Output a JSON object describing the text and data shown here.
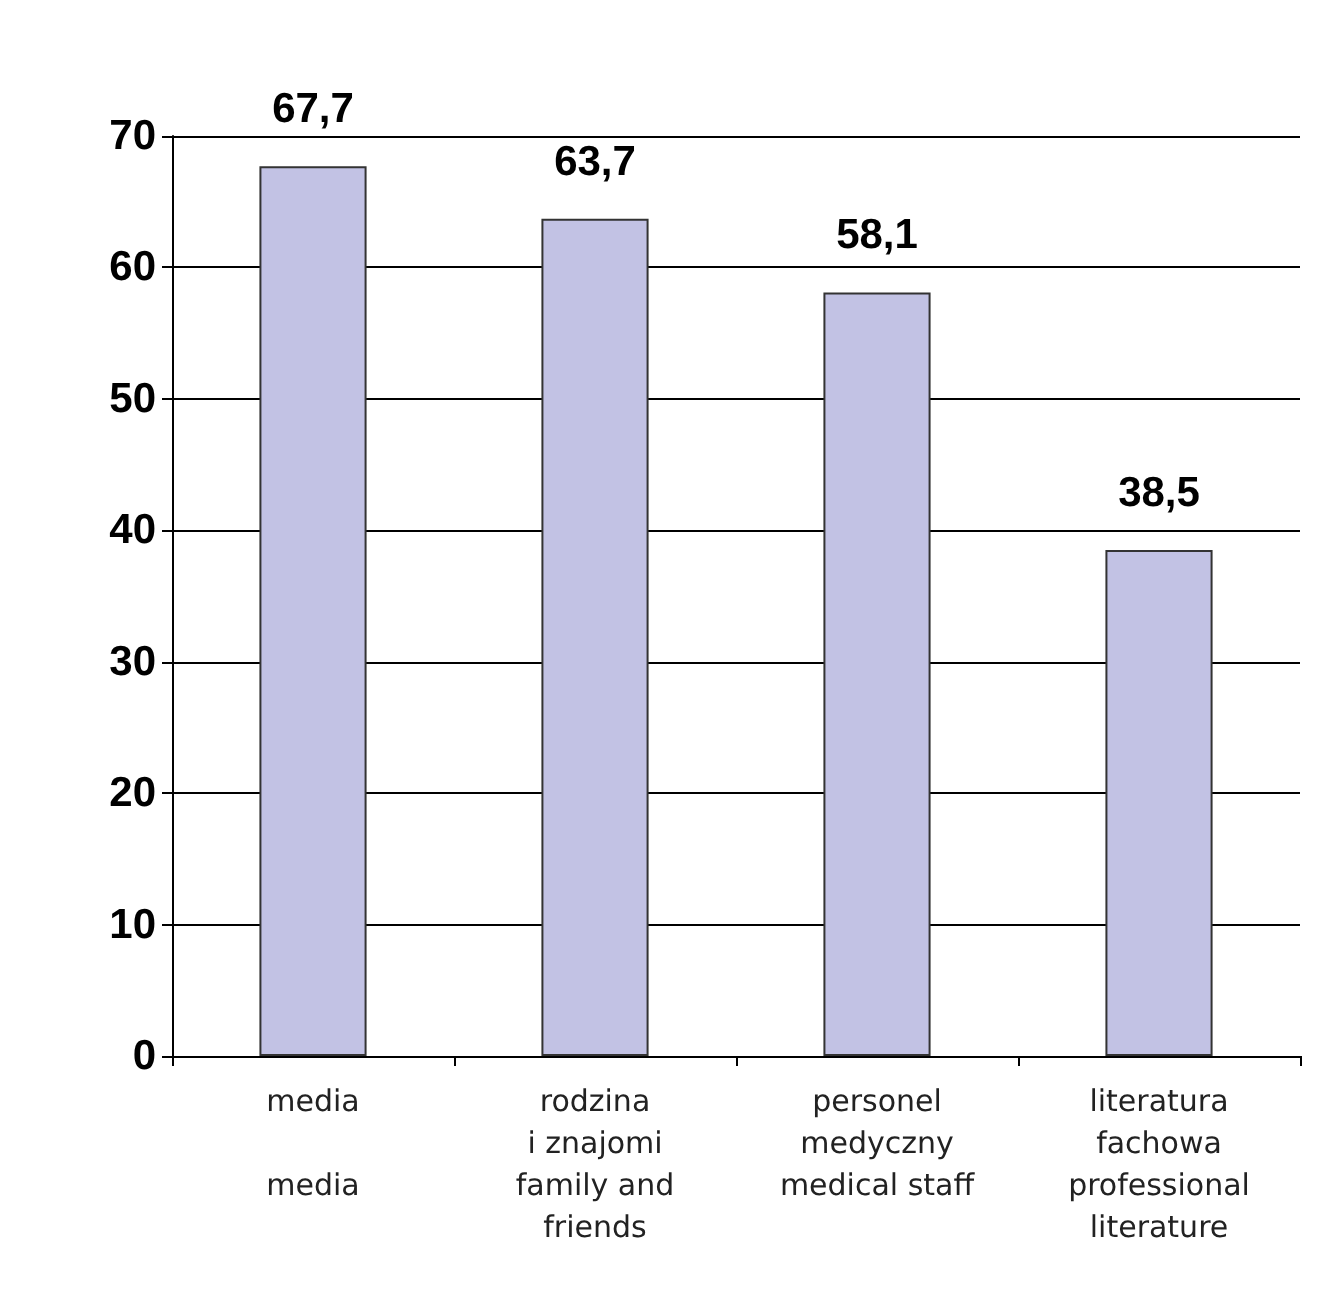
{
  "chart_data": {
    "type": "bar",
    "categories": [
      "media\n\nmedia",
      "rodzina\ni znajomi\nfamily and\nfriends",
      "personel\nmedyczny\nmedical staff",
      "literatura\nfachowa\nprofessional\nliterature"
    ],
    "values": [
      67.7,
      63.7,
      58.1,
      38.5
    ],
    "value_labels": [
      "67,7",
      "63,7",
      "58,1",
      "38,5"
    ],
    "color": "#c2c2e4",
    "ylim": [
      0,
      70
    ],
    "yticks": [
      0,
      10,
      20,
      30,
      40,
      50,
      60,
      70
    ],
    "grid": "y"
  }
}
